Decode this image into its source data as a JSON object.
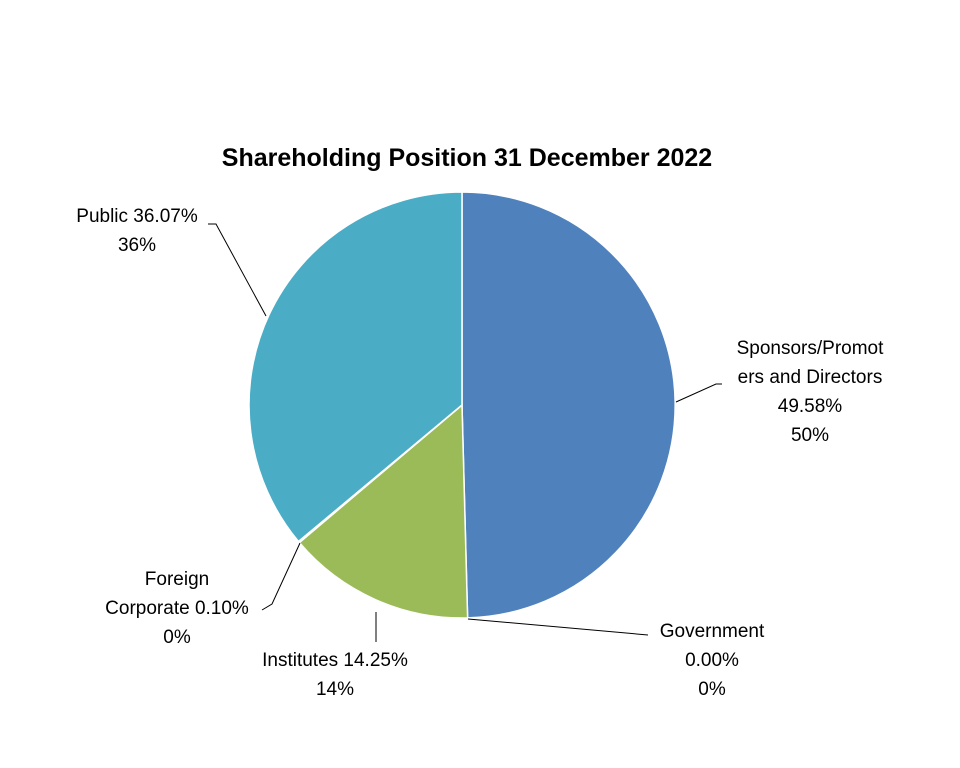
{
  "chart_data": {
    "type": "pie",
    "title": "Shareholding Position 31 December 2022",
    "start_angle_deg": 0,
    "direction": "clockwise",
    "slices": [
      {
        "id": "sponsors",
        "lines": [
          "Sponsors/Promot",
          "ers and Directors",
          "49.58%",
          "50%"
        ],
        "value": 49.58,
        "color": "#4F81BD"
      },
      {
        "id": "government",
        "lines": [
          "Government",
          "0.00%",
          "0%"
        ],
        "value": 0.0,
        "color": "#C0504D"
      },
      {
        "id": "institutes",
        "lines": [
          "Institutes 14.25%",
          "14%"
        ],
        "value": 14.25,
        "color": "#9BBB59"
      },
      {
        "id": "foreign-corporate",
        "lines": [
          "Foreign",
          "Corporate 0.10%",
          "0%"
        ],
        "value": 0.1,
        "color": "#8064A2"
      },
      {
        "id": "public",
        "lines": [
          "Public 36.07%",
          "36%"
        ],
        "value": 36.07,
        "color": "#4BACC6"
      }
    ]
  }
}
